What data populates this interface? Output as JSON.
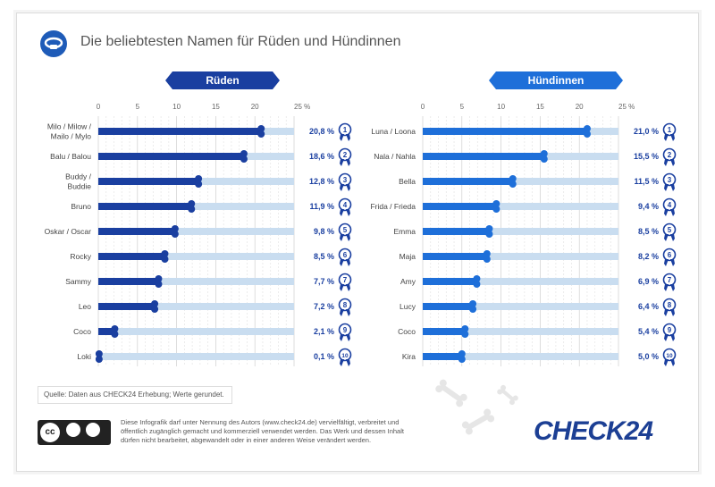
{
  "header": {
    "title": "Die beliebtesten Namen für Rüden und Hündinnen"
  },
  "colors": {
    "male_bar": "#1a3fa0",
    "female_bar": "#1e6fd9",
    "track": "#c9ddf0",
    "badge_male": "#1a3fa0",
    "badge_female": "#1e6fd9"
  },
  "chart_data": [
    {
      "type": "bar",
      "title": "Rüden",
      "categories": [
        "Milo / Milow / Mailo / Mylo",
        "Balu / Balou",
        "Buddy / Buddie",
        "Bruno",
        "Oskar / Oscar",
        "Rocky",
        "Sammy",
        "Leo",
        "Coco",
        "Loki"
      ],
      "values": [
        20.8,
        18.6,
        12.8,
        11.9,
        9.8,
        8.5,
        7.7,
        7.2,
        2.1,
        0.1
      ],
      "value_labels": [
        "20,8 %",
        "18,6 %",
        "12,8 %",
        "11,9 %",
        "9,8 %",
        "8,5 %",
        "7,7 %",
        "7,2 %",
        "2,1 %",
        "0,1 %"
      ],
      "ranks": [
        "1",
        "2",
        "3",
        "4",
        "5",
        "6",
        "7",
        "8",
        "9",
        "10"
      ],
      "ticks": [
        "0",
        "5",
        "10",
        "15",
        "20",
        "25 %"
      ],
      "xlim": [
        0,
        25
      ]
    },
    {
      "type": "bar",
      "title": "Hündinnen",
      "categories": [
        "Luna / Loona",
        "Nala / Nahla",
        "Bella",
        "Frida / Frieda",
        "Emma",
        "Maja",
        "Amy",
        "Lucy",
        "Coco",
        "Kira"
      ],
      "values": [
        21.0,
        15.5,
        11.5,
        9.4,
        8.5,
        8.2,
        6.9,
        6.4,
        5.4,
        5.0
      ],
      "value_labels": [
        "21,0 %",
        "15,5 %",
        "11,5 %",
        "9,4 %",
        "8,5 %",
        "8,2 %",
        "6,9 %",
        "6,4 %",
        "5,4 %",
        "5,0 %"
      ],
      "ranks": [
        "1",
        "2",
        "3",
        "4",
        "5",
        "6",
        "7",
        "8",
        "9",
        "10"
      ],
      "ticks": [
        "0",
        "5",
        "10",
        "15",
        "20",
        "25 %"
      ],
      "xlim": [
        0,
        25
      ]
    }
  ],
  "footer": {
    "source": "Quelle: Daten aus CHECK24 Erhebung; Werte gerundet.",
    "license": "Diese Infografik darf unter Nennung des Autors (www.check24.de) vervielfältigt, verbreitet und öffentlich zugänglich gemacht und kommerziell verwendet werden. Das Werk und dessen Inhalt dürfen nicht bearbeitet, abgewandelt oder in einer anderen Weise verändert werden.",
    "cc_label": "cc",
    "logo": "CHECK24"
  }
}
